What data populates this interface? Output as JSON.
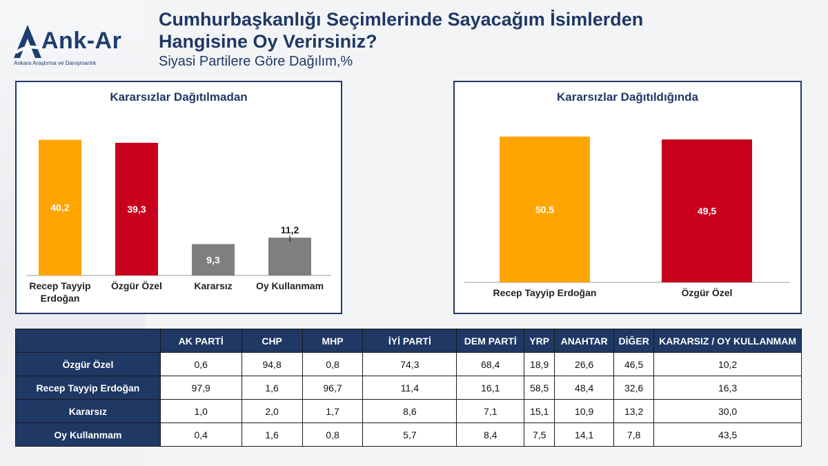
{
  "logo": {
    "name": "Ank-Ar",
    "tagline": "Ankara Araştırma ve Danışmanlık"
  },
  "header": {
    "title_line1": "Cumhurbaşkanlığı Seçimlerinde Sayacağım İsimlerden",
    "title_line2": "Hangisine Oy Verirsiniz?",
    "subtitle": "Siyasi Partilere Göre Dağılım,%"
  },
  "colors": {
    "navy": "#1f3864",
    "orange": "#ffa500",
    "red": "#c8001e",
    "gray": "#7f7f7f"
  },
  "chart_data": [
    {
      "type": "bar",
      "title": "Kararsızlar Dağıtılmadan",
      "categories": [
        "Recep Tayyip Erdoğan",
        "Özgür Özel",
        "Kararsız",
        "Oy Kullanmam"
      ],
      "values": [
        40.2,
        39.3,
        9.3,
        11.2
      ],
      "labels": [
        "40,2",
        "39,3",
        "9,3",
        "11,2"
      ],
      "colors": [
        "#ffa500",
        "#c8001e",
        "#7f7f7f",
        "#7f7f7f"
      ],
      "xlabel": "",
      "ylabel": "",
      "ylim": [
        0,
        45
      ],
      "grid": false
    },
    {
      "type": "bar",
      "title": "Kararsızlar Dağıtıldığında",
      "categories": [
        "Recep Tayyip Erdoğan",
        "Özgür Özel"
      ],
      "values": [
        50.5,
        49.5
      ],
      "labels": [
        "50,5",
        "49,5"
      ],
      "colors": [
        "#ffa500",
        "#c8001e"
      ],
      "xlabel": "",
      "ylabel": "",
      "ylim": [
        0,
        55
      ],
      "grid": false
    }
  ],
  "table": {
    "corner": "",
    "columns": [
      "AK PARTİ",
      "CHP",
      "MHP",
      "İYİ PARTİ",
      "DEM PARTİ",
      "YRP",
      "ANAHTAR",
      "DİĞER",
      "KARARSIZ / OY KULLANMAM"
    ],
    "rows": [
      {
        "label": "Özgür Özel",
        "cells": [
          "0,6",
          "94,8",
          "0,8",
          "74,3",
          "68,4",
          "18,9",
          "26,6",
          "46,5",
          "10,2"
        ]
      },
      {
        "label": "Recep Tayyip Erdoğan",
        "cells": [
          "97,9",
          "1,6",
          "96,7",
          "11,4",
          "16,1",
          "58,5",
          "48,4",
          "32,6",
          "16,3"
        ]
      },
      {
        "label": "Kararsız",
        "cells": [
          "1,0",
          "2,0",
          "1,7",
          "8,6",
          "7,1",
          "15,1",
          "10,9",
          "13,2",
          "30,0"
        ]
      },
      {
        "label": "Oy Kullanmam",
        "cells": [
          "0,4",
          "1,6",
          "0,8",
          "5,7",
          "8,4",
          "7,5",
          "14,1",
          "7,8",
          "43,5"
        ]
      }
    ]
  }
}
